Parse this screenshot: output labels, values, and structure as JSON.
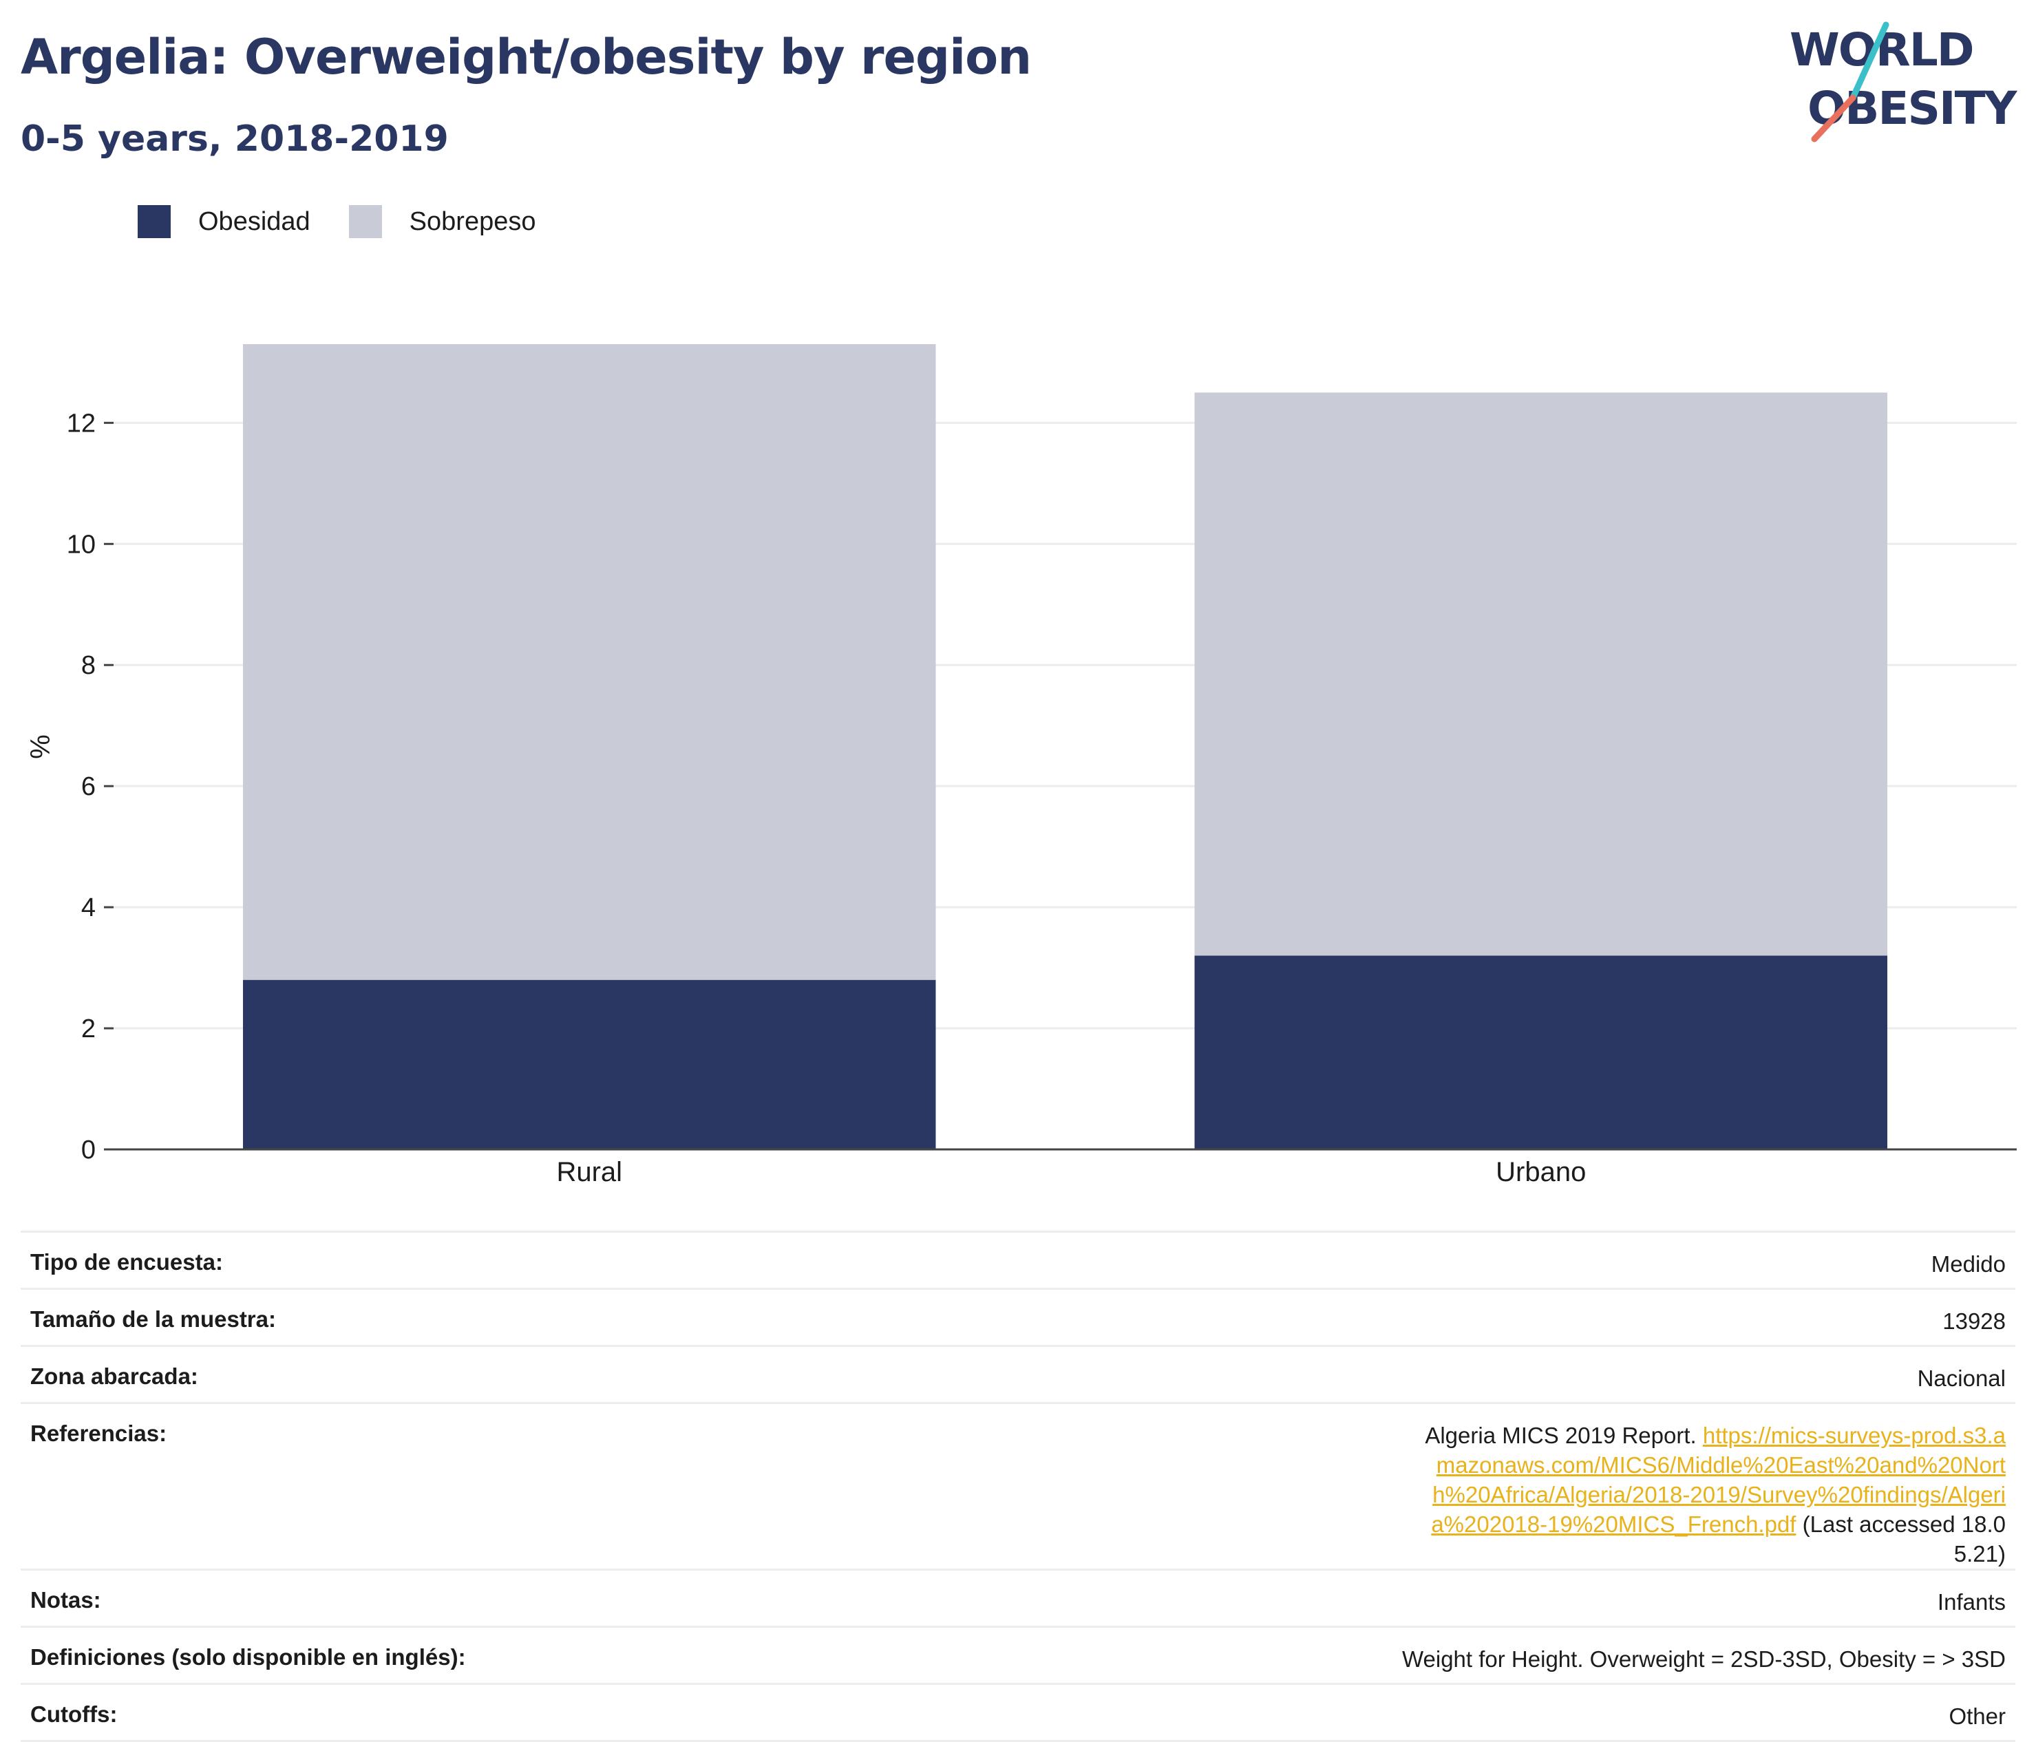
{
  "header": {
    "title": "Argelia: Overweight/obesity by region",
    "subtitle": "0-5 years, 2018-2019"
  },
  "logo": {
    "line1": "WORLD",
    "line2": "OBESITY"
  },
  "legend": [
    {
      "label": "Obesidad",
      "color": "#2b3763"
    },
    {
      "label": "Sobrepeso",
      "color": "#c9cbd6"
    }
  ],
  "chart_data": {
    "type": "bar",
    "stacked": true,
    "categories": [
      "Rural",
      "Urbano"
    ],
    "series": [
      {
        "name": "Obesidad",
        "values": [
          2.8,
          3.2
        ],
        "color": "#2b3763"
      },
      {
        "name": "Sobrepeso",
        "values": [
          10.5,
          9.3
        ],
        "color": "#c9cbd6"
      }
    ],
    "ylabel": "%",
    "ylim": [
      0,
      13.3
    ],
    "yticks": [
      0,
      2,
      4,
      6,
      8,
      10,
      12
    ],
    "grid": true,
    "legend_position": "top-left"
  },
  "info": [
    {
      "key": "Tipo de encuesta:",
      "value": "Medido"
    },
    {
      "key": "Tamaño de la muestra:",
      "value": "13928"
    },
    {
      "key": "Zona abarcada:",
      "value": "Nacional"
    },
    {
      "key": "Referencias:",
      "value_prefix": "Algeria MICS 2019 Report. ",
      "link": "https://mics-surveys-prod.s3.amazonaws.com/MICS6/Middle%20East%20and%20North%20Africa/Algeria/2018-2019/Survey%20findings/Algeria%202018-19%20MICS_French.pdf",
      "value_suffix": " (Last accessed 18.05.21)"
    },
    {
      "key": "Notas:",
      "value": "Infants"
    },
    {
      "key": "Definiciones (solo disponible en inglés):",
      "value": "Weight for Height. Overweight = 2SD-3SD, Obesity = > 3SD"
    },
    {
      "key": "Cutoffs:",
      "value": "Other"
    }
  ]
}
